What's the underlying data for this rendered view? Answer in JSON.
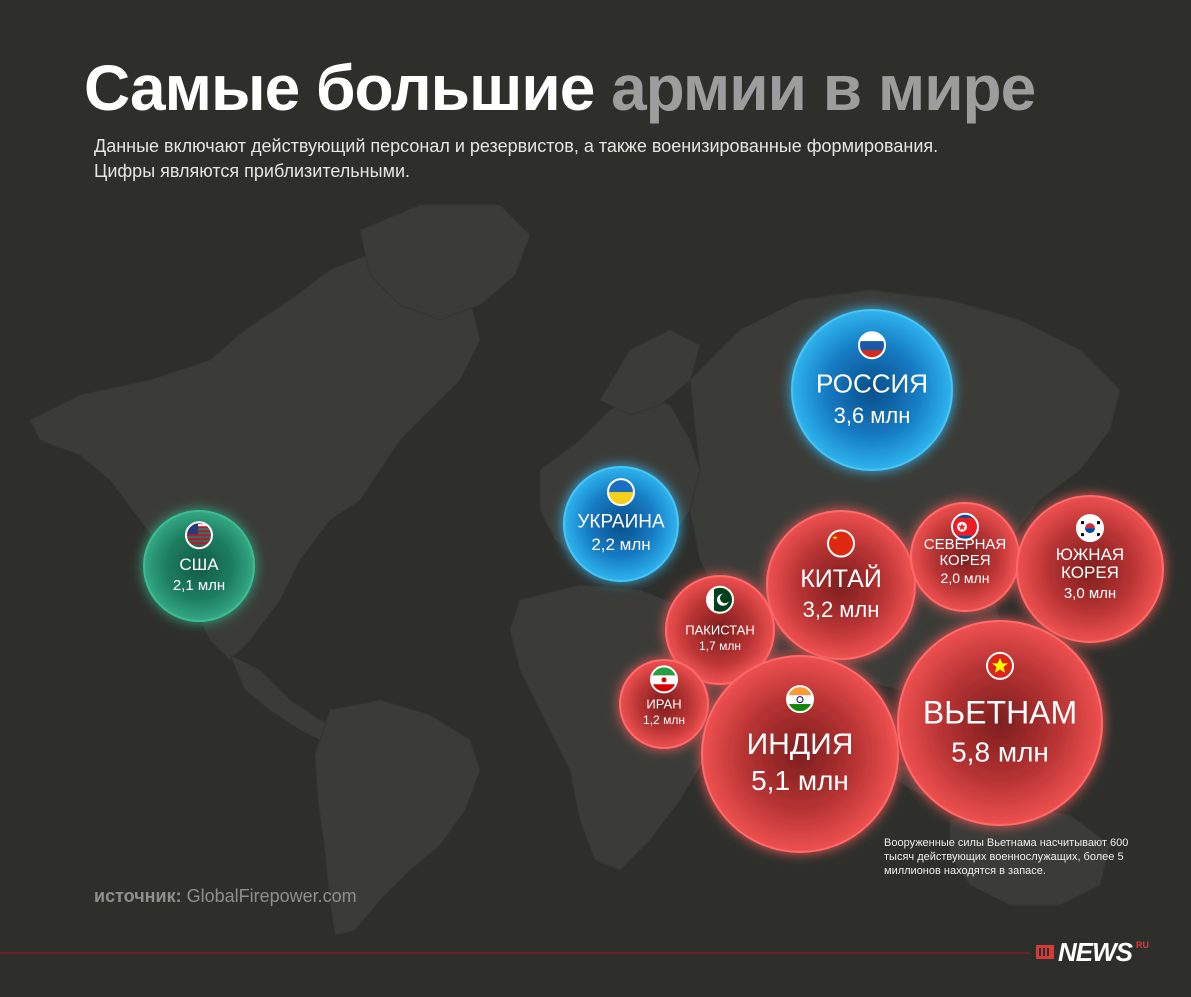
{
  "title_part1": "Самые большие",
  "title_part2": "армии в мире",
  "subtitle_line1": "Данные включают действующий персонал и резервистов, а также военизированные формирования.",
  "subtitle_line2": "Цифры являются приблизительными.",
  "source_label": "источник:",
  "source_value": "GlobalFirepower.com",
  "note": "Вооруженные силы Вьетнама насчитывают 600 тысяч действующих военнослужащих, более 5 миллионов находятся в запасе.",
  "logo_text": "NEWS",
  "logo_sup": "RU",
  "colors": {
    "background": "#2e2f2b",
    "land": "#3d3e3a",
    "red": "#d84040",
    "blue": "#1e9bd8",
    "green": "#2f9a76"
  },
  "chart_data": {
    "type": "bubble-map",
    "unit": "млн",
    "series": [
      {
        "country": "РОССИЯ",
        "label": "3,6 млн",
        "value": 3.6,
        "color": "blue",
        "flag": "russia-flag-icon"
      },
      {
        "country": "УКРАИНА",
        "label": "2,2 млн",
        "value": 2.2,
        "color": "blue",
        "flag": "ukraine-flag-icon"
      },
      {
        "country": "США",
        "label": "2,1 млн",
        "value": 2.1,
        "color": "green",
        "flag": "usa-flag-icon"
      },
      {
        "country": "КИТАЙ",
        "label": "3,2 млн",
        "value": 3.2,
        "color": "red",
        "flag": "china-flag-icon"
      },
      {
        "country": "СЕВЕРНАЯ КОРЕЯ",
        "label": "2,0 млн",
        "value": 2.0,
        "color": "red",
        "flag": "north-korea-flag-icon"
      },
      {
        "country": "ЮЖНАЯ КОРЕЯ",
        "label": "3,0 млн",
        "value": 3.0,
        "color": "red",
        "flag": "south-korea-flag-icon"
      },
      {
        "country": "ПАКИСТАН",
        "label": "1,7 млн",
        "value": 1.7,
        "color": "red",
        "flag": "pakistan-flag-icon"
      },
      {
        "country": "ИРАН",
        "label": "1,2 млн",
        "value": 1.2,
        "color": "red",
        "flag": "iran-flag-icon"
      },
      {
        "country": "ИНДИЯ",
        "label": "5,1 млн",
        "value": 5.1,
        "color": "red",
        "flag": "india-flag-icon"
      },
      {
        "country": "ВЬЕТНАМ",
        "label": "5,8 млн",
        "value": 5.8,
        "color": "red",
        "flag": "vietnam-flag-icon"
      }
    ]
  }
}
